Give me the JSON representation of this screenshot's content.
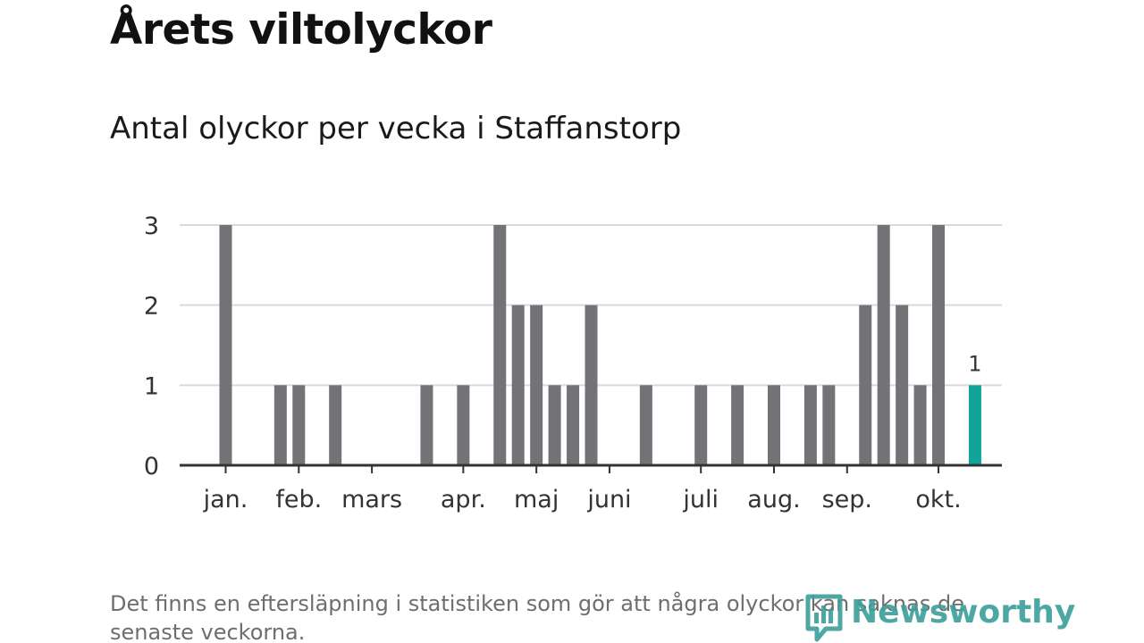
{
  "title": "Årets viltolyckor",
  "subtitle": "Antal olyckor per vecka i Staffanstorp",
  "footnote": "Det finns en eftersläpning i statistiken som gör att några olyckor kan saknas de senaste veckorna.",
  "logo": {
    "text": "Newsworthy",
    "icon": "newsworthy-logo-icon",
    "color": "#3a9e98"
  },
  "colors": {
    "bar": "#737277",
    "highlight": "#12a39a",
    "grid": "#d9d9d9",
    "axis": "#333333"
  },
  "chart_data": {
    "type": "bar",
    "title": "Årets viltolyckor",
    "subtitle": "Antal olyckor per vecka i Staffanstorp",
    "xlabel": "",
    "ylabel": "",
    "ylim": [
      0,
      3
    ],
    "yticks": [
      0,
      1,
      2,
      3
    ],
    "grid": true,
    "legend": "none",
    "x": [
      1,
      2,
      3,
      4,
      5,
      6,
      7,
      8,
      9,
      10,
      11,
      12,
      13,
      14,
      15,
      16,
      17,
      18,
      19,
      20,
      21,
      22,
      23,
      24,
      25,
      26,
      27,
      28,
      29,
      30,
      31,
      32,
      33,
      34,
      35,
      36,
      37,
      38,
      39,
      40,
      41,
      42
    ],
    "values": [
      3,
      0,
      0,
      1,
      1,
      0,
      1,
      0,
      0,
      0,
      0,
      1,
      0,
      1,
      0,
      3,
      2,
      2,
      1,
      1,
      2,
      0,
      0,
      1,
      0,
      0,
      1,
      0,
      1,
      0,
      1,
      0,
      1,
      1,
      0,
      2,
      3,
      2,
      1,
      3,
      0,
      1
    ],
    "highlighted_index": 41,
    "highlight_label": "1",
    "month_ticks": [
      {
        "label": "jan.",
        "week": 1
      },
      {
        "label": "feb.",
        "week": 5
      },
      {
        "label": "mars",
        "week": 9
      },
      {
        "label": "apr.",
        "week": 14
      },
      {
        "label": "maj",
        "week": 18
      },
      {
        "label": "juni",
        "week": 22
      },
      {
        "label": "juli",
        "week": 27
      },
      {
        "label": "aug.",
        "week": 31
      },
      {
        "label": "sep.",
        "week": 35
      },
      {
        "label": "okt.",
        "week": 40
      }
    ]
  }
}
